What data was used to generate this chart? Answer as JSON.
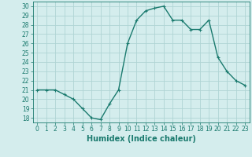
{
  "x": [
    0,
    1,
    2,
    3,
    4,
    5,
    6,
    7,
    8,
    9,
    10,
    11,
    12,
    13,
    14,
    15,
    16,
    17,
    18,
    19,
    20,
    21,
    22,
    23
  ],
  "y": [
    21,
    21,
    21,
    20.5,
    20,
    19,
    18,
    17.8,
    19.5,
    21,
    26,
    28.5,
    29.5,
    29.8,
    30,
    28.5,
    28.5,
    27.5,
    27.5,
    28.5,
    24.5,
    23,
    22,
    21.5
  ],
  "line_color": "#1a7a6e",
  "marker_color": "#1a7a6e",
  "bg_color": "#d4eded",
  "grid_color": "#b0d4d4",
  "xlabel": "Humidex (Indice chaleur)",
  "xlim": [
    -0.5,
    23.5
  ],
  "ylim": [
    17.5,
    30.5
  ],
  "yticks": [
    18,
    19,
    20,
    21,
    22,
    23,
    24,
    25,
    26,
    27,
    28,
    29,
    30
  ],
  "xticks": [
    0,
    1,
    2,
    3,
    4,
    5,
    6,
    7,
    8,
    9,
    10,
    11,
    12,
    13,
    14,
    15,
    16,
    17,
    18,
    19,
    20,
    21,
    22,
    23
  ],
  "tick_label_fontsize": 5.5,
  "xlabel_fontsize": 7,
  "linewidth": 1.0,
  "markersize": 2.5
}
